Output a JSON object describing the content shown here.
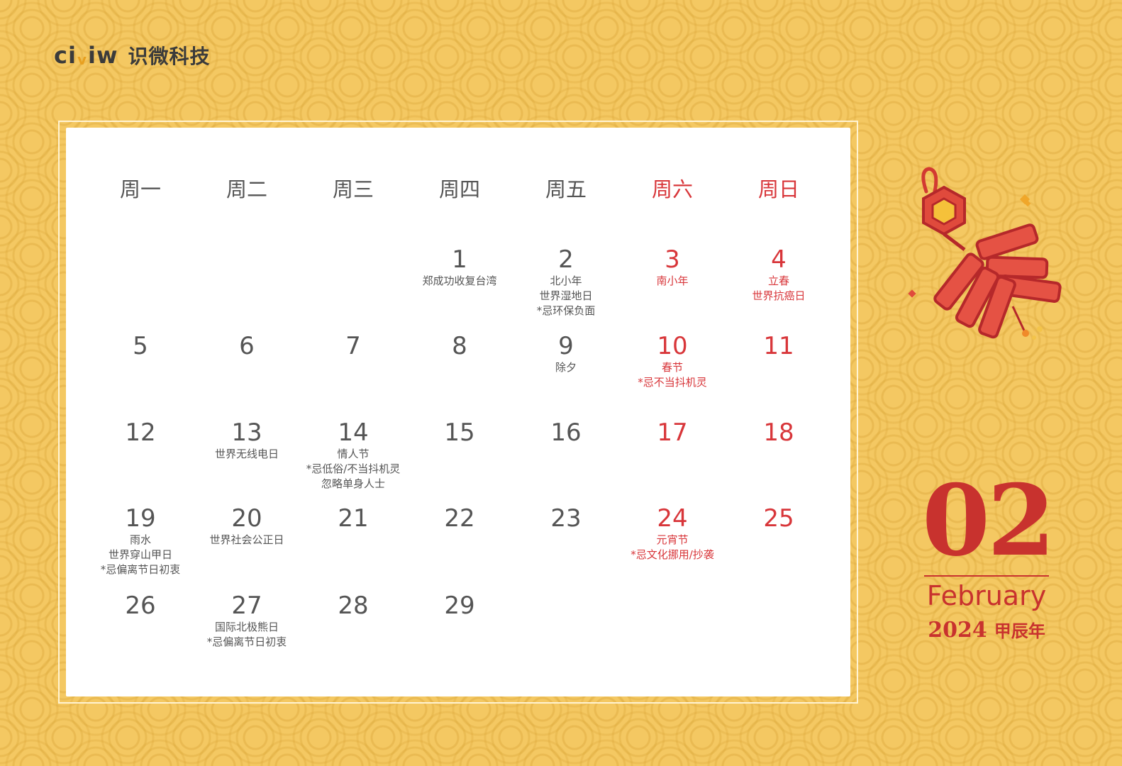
{
  "brand": {
    "mark_left": "ci",
    "mark_v": "v",
    "mark_right": "iw",
    "name": "识微科技"
  },
  "weekdays": [
    {
      "label": "周一",
      "weekend": false
    },
    {
      "label": "周二",
      "weekend": false
    },
    {
      "label": "周三",
      "weekend": false
    },
    {
      "label": "周四",
      "weekend": false
    },
    {
      "label": "周五",
      "weekend": false
    },
    {
      "label": "周六",
      "weekend": true
    },
    {
      "label": "周日",
      "weekend": true
    }
  ],
  "days": [
    {
      "n": "1",
      "notes": [
        "郑成功收复台湾"
      ]
    },
    {
      "n": "2",
      "notes": [
        "北小年",
        "世界湿地日",
        "*忌环保负面"
      ]
    },
    {
      "n": "3",
      "notes": [
        "南小年"
      ]
    },
    {
      "n": "4",
      "notes": [
        "立春",
        "世界抗癌日"
      ]
    },
    {
      "n": "5",
      "notes": []
    },
    {
      "n": "6",
      "notes": []
    },
    {
      "n": "7",
      "notes": []
    },
    {
      "n": "8",
      "notes": []
    },
    {
      "n": "9",
      "notes": [
        "除夕"
      ]
    },
    {
      "n": "10",
      "notes": [
        "春节",
        "*忌不当抖机灵"
      ]
    },
    {
      "n": "11",
      "notes": []
    },
    {
      "n": "12",
      "notes": []
    },
    {
      "n": "13",
      "notes": [
        "世界无线电日"
      ]
    },
    {
      "n": "14",
      "notes": [
        "情人节",
        "*忌低俗/不当抖机灵",
        "忽略单身人士"
      ]
    },
    {
      "n": "15",
      "notes": []
    },
    {
      "n": "16",
      "notes": []
    },
    {
      "n": "17",
      "notes": []
    },
    {
      "n": "18",
      "notes": []
    },
    {
      "n": "19",
      "notes": [
        "雨水",
        "世界穿山甲日",
        "*忌偏离节日初衷"
      ]
    },
    {
      "n": "20",
      "notes": [
        "世界社会公正日"
      ]
    },
    {
      "n": "21",
      "notes": []
    },
    {
      "n": "22",
      "notes": []
    },
    {
      "n": "23",
      "notes": []
    },
    {
      "n": "24",
      "notes": [
        "元宵节",
        "*忌文化挪用/抄袭"
      ]
    },
    {
      "n": "25",
      "notes": []
    },
    {
      "n": "26",
      "notes": []
    },
    {
      "n": "27",
      "notes": [
        "国际北极熊日",
        "*忌偏离节日初衷"
      ]
    },
    {
      "n": "28",
      "notes": []
    },
    {
      "n": "29",
      "notes": []
    }
  ],
  "first_day_column": 3,
  "month": {
    "number": "02",
    "name_en": "February",
    "year": "2024",
    "ganzhi": "甲辰年"
  },
  "decoration": "firecracker-icon",
  "colors": {
    "background": "#f4c862",
    "accent_red": "#d8363a",
    "text": "#555555",
    "month_red": "#c8322e"
  }
}
